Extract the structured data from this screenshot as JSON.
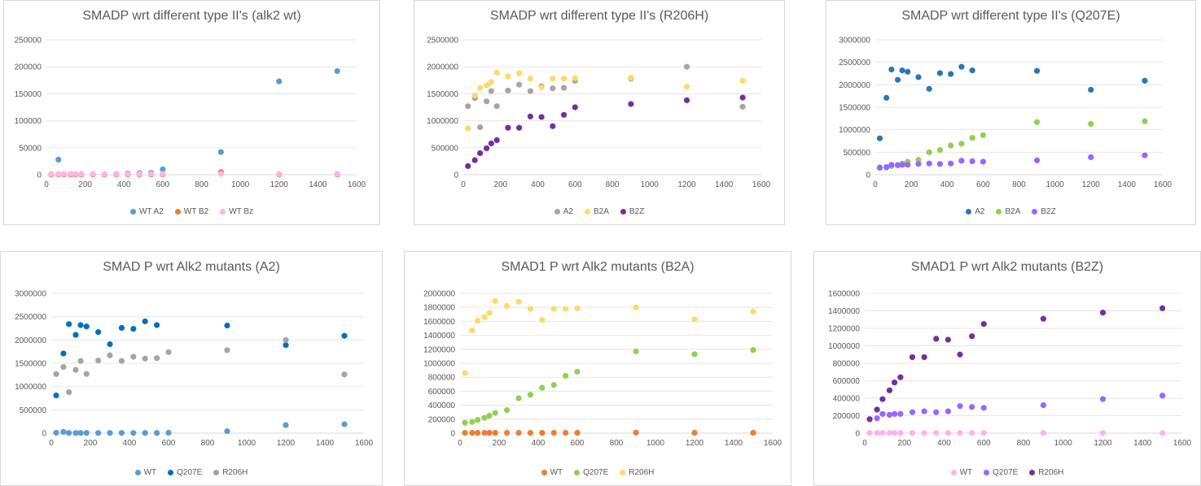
{
  "chart_data": [
    {
      "type": "scatter",
      "title": "SMADP wrt different type II's (alk2 wt)",
      "ylim": [
        0,
        250000
      ],
      "yticks": [
        0,
        50000,
        100000,
        150000,
        200000,
        250000
      ],
      "xlim": [
        0,
        1600
      ],
      "xticks": [
        0,
        200,
        400,
        600,
        800,
        1000,
        1200,
        1400,
        1600
      ],
      "grid": true,
      "legend": "bottom",
      "series": [
        {
          "name": "WT A2",
          "color": "#5b9bd5",
          "x": [
            25,
            62,
            125,
            900,
            1200,
            1500,
            420,
            480,
            540,
            600,
            360
          ],
          "y": [
            1000,
            28000,
            1000,
            42000,
            173000,
            192000,
            2500,
            3000,
            3500,
            10000,
            1500
          ]
        },
        {
          "name": "WT B2",
          "color": "#ed7d31",
          "x": [
            25,
            62,
            90,
            125,
            150,
            180,
            240,
            300,
            360,
            420,
            480,
            540,
            600,
            900,
            1200,
            1500
          ],
          "y": [
            500,
            500,
            500,
            500,
            500,
            500,
            500,
            500,
            500,
            500,
            500,
            500,
            500,
            5000,
            500,
            500
          ]
        },
        {
          "name": "WT Bz",
          "color": "#ffb3e6",
          "x": [
            25,
            62,
            90,
            125,
            150,
            180,
            240,
            300,
            360,
            420,
            480,
            540,
            600,
            900,
            1200,
            1500
          ],
          "y": [
            1500,
            1500,
            1500,
            1500,
            1500,
            1500,
            1500,
            1500,
            1500,
            1500,
            1500,
            1500,
            1500,
            1500,
            1500,
            1500
          ]
        }
      ]
    },
    {
      "type": "scatter",
      "title": "SMADP wrt different type II's  (R206H)",
      "ylim": [
        0,
        2500000
      ],
      "yticks": [
        0,
        500000,
        1000000,
        1500000,
        2000000,
        2500000
      ],
      "xlim": [
        0,
        1600
      ],
      "xticks": [
        0,
        200,
        400,
        600,
        800,
        1000,
        1200,
        1400,
        1600
      ],
      "grid": true,
      "legend": "bottom",
      "series": [
        {
          "name": "A2",
          "color": "#a5a5a5",
          "x": [
            25,
            62,
            90,
            125,
            150,
            180,
            240,
            300,
            360,
            420,
            480,
            540,
            600,
            900,
            1200,
            1500
          ],
          "y": [
            1270000,
            1420000,
            880000,
            1360000,
            1550000,
            1270000,
            1560000,
            1670000,
            1550000,
            1640000,
            1600000,
            1610000,
            1740000,
            1780000,
            2000000,
            1260000
          ]
        },
        {
          "name": "B2A",
          "color": "#ffd966",
          "x": [
            25,
            62,
            90,
            125,
            150,
            180,
            240,
            300,
            360,
            420,
            480,
            540,
            600,
            900,
            1200,
            1500
          ],
          "y": [
            860000,
            1470000,
            1610000,
            1660000,
            1720000,
            1890000,
            1820000,
            1880000,
            1780000,
            1620000,
            1780000,
            1780000,
            1790000,
            1800000,
            1630000,
            1740000
          ]
        },
        {
          "name": "B2Z",
          "color": "#7030a0",
          "x": [
            25,
            62,
            90,
            125,
            150,
            180,
            240,
            300,
            360,
            420,
            480,
            540,
            600,
            900,
            1200,
            1500
          ],
          "y": [
            160000,
            270000,
            400000,
            490000,
            580000,
            640000,
            870000,
            870000,
            1080000,
            1070000,
            900000,
            1110000,
            1250000,
            1310000,
            1380000,
            1430000
          ]
        }
      ]
    },
    {
      "type": "scatter",
      "title": "SMADP wrt different type II's  (Q207E)",
      "ylim": [
        0,
        3000000
      ],
      "yticks": [
        0,
        500000,
        1000000,
        1500000,
        2000000,
        2500000,
        3000000
      ],
      "xlim": [
        0,
        1600
      ],
      "xticks": [
        0,
        200,
        400,
        600,
        800,
        1000,
        1200,
        1400,
        1600
      ],
      "grid": true,
      "legend": "bottom",
      "series": [
        {
          "name": "A2",
          "color": "#2e75b6",
          "x": [
            25,
            62,
            90,
            125,
            150,
            180,
            240,
            300,
            360,
            420,
            480,
            540,
            900,
            1200,
            1500
          ],
          "y": [
            810000,
            1710000,
            2340000,
            2110000,
            2320000,
            2290000,
            2170000,
            1910000,
            2260000,
            2240000,
            2400000,
            2320000,
            2310000,
            1890000,
            2090000
          ]
        },
        {
          "name": "B2A",
          "color": "#92d050",
          "x": [
            25,
            62,
            90,
            125,
            150,
            180,
            240,
            300,
            360,
            420,
            480,
            540,
            600,
            900,
            1200,
            1500
          ],
          "y": [
            150000,
            160000,
            190000,
            220000,
            250000,
            290000,
            330000,
            500000,
            550000,
            650000,
            690000,
            820000,
            880000,
            1170000,
            1130000,
            1190000
          ]
        },
        {
          "name": "B2Z",
          "color": "#9966ff",
          "x": [
            25,
            62,
            90,
            125,
            150,
            180,
            240,
            300,
            360,
            420,
            480,
            540,
            600,
            900,
            1200,
            1500
          ],
          "y": [
            160000,
            170000,
            220000,
            210000,
            220000,
            220000,
            240000,
            250000,
            240000,
            250000,
            310000,
            300000,
            290000,
            320000,
            390000,
            430000
          ]
        }
      ]
    },
    {
      "type": "scatter",
      "title": "SMAD P wrt Alk2 mutants (A2)",
      "ylim": [
        0,
        3000000
      ],
      "yticks": [
        0,
        500000,
        1000000,
        1500000,
        2000000,
        2500000,
        3000000
      ],
      "xlim": [
        0,
        1600
      ],
      "xticks": [
        0,
        200,
        400,
        600,
        800,
        1000,
        1200,
        1400,
        1600
      ],
      "grid": true,
      "legend": "bottom",
      "series": [
        {
          "name": "WT",
          "color": "#5b9bd5",
          "x": [
            25,
            62,
            90,
            125,
            150,
            180,
            240,
            300,
            360,
            420,
            480,
            540,
            600,
            900,
            1200,
            1500
          ],
          "y": [
            10000,
            28000,
            5000,
            5000,
            5000,
            5000,
            5000,
            5000,
            5000,
            5000,
            5000,
            5000,
            10000,
            42000,
            173000,
            192000
          ]
        },
        {
          "name": "Q207E",
          "color": "#0070c0",
          "x": [
            25,
            62,
            90,
            125,
            150,
            180,
            240,
            300,
            360,
            420,
            480,
            540,
            900,
            1200,
            1500
          ],
          "y": [
            810000,
            1710000,
            2340000,
            2110000,
            2320000,
            2290000,
            2170000,
            1910000,
            2260000,
            2240000,
            2400000,
            2320000,
            2310000,
            1890000,
            2090000
          ]
        },
        {
          "name": "R206H",
          "color": "#a5a5a5",
          "x": [
            25,
            62,
            90,
            125,
            150,
            180,
            240,
            300,
            360,
            420,
            480,
            540,
            600,
            900,
            1200,
            1500
          ],
          "y": [
            1270000,
            1420000,
            880000,
            1360000,
            1550000,
            1270000,
            1560000,
            1670000,
            1550000,
            1640000,
            1600000,
            1610000,
            1740000,
            1780000,
            2000000,
            1260000
          ]
        }
      ]
    },
    {
      "type": "scatter",
      "title": "SMAD1 P wrt Alk2 mutants (B2A)",
      "ylim": [
        0,
        2000000
      ],
      "yticks": [
        0,
        200000,
        400000,
        600000,
        800000,
        1000000,
        1200000,
        1400000,
        1600000,
        1800000,
        2000000
      ],
      "xlim": [
        0,
        1600
      ],
      "xticks": [
        0,
        200,
        400,
        600,
        800,
        1000,
        1200,
        1400,
        1600
      ],
      "grid": true,
      "legend": "bottom",
      "series": [
        {
          "name": "WT",
          "color": "#ed7d31",
          "x": [
            25,
            62,
            90,
            125,
            150,
            180,
            240,
            300,
            360,
            420,
            480,
            540,
            600,
            900,
            1200,
            1500
          ],
          "y": [
            5000,
            5000,
            5000,
            5000,
            5000,
            5000,
            5000,
            5000,
            5000,
            5000,
            5000,
            5000,
            5000,
            8000,
            5000,
            5000
          ]
        },
        {
          "name": "Q207E",
          "color": "#92d050",
          "x": [
            25,
            62,
            90,
            125,
            150,
            180,
            240,
            300,
            360,
            420,
            480,
            540,
            600,
            900,
            1200,
            1500
          ],
          "y": [
            150000,
            160000,
            190000,
            220000,
            250000,
            290000,
            330000,
            500000,
            550000,
            650000,
            690000,
            820000,
            880000,
            1170000,
            1130000,
            1190000
          ]
        },
        {
          "name": "R206H",
          "color": "#ffd966",
          "x": [
            25,
            62,
            90,
            125,
            150,
            180,
            240,
            300,
            360,
            420,
            480,
            540,
            600,
            900,
            1200,
            1500
          ],
          "y": [
            860000,
            1470000,
            1610000,
            1660000,
            1720000,
            1890000,
            1820000,
            1880000,
            1780000,
            1620000,
            1780000,
            1780000,
            1790000,
            1800000,
            1630000,
            1740000
          ]
        }
      ]
    },
    {
      "type": "scatter",
      "title": "SMAD1 P wrt Alk2 mutants (B2Z)",
      "ylim": [
        0,
        1600000
      ],
      "yticks": [
        0,
        200000,
        400000,
        600000,
        800000,
        1000000,
        1200000,
        1400000,
        1600000
      ],
      "xlim": [
        0,
        1600
      ],
      "xticks": [
        0,
        200,
        400,
        600,
        800,
        1000,
        1200,
        1400,
        1600
      ],
      "grid": true,
      "legend": "bottom",
      "series": [
        {
          "name": "WT",
          "color": "#ffb3e6",
          "x": [
            25,
            62,
            90,
            125,
            150,
            180,
            240,
            300,
            360,
            420,
            480,
            540,
            600,
            900,
            1200,
            1500
          ],
          "y": [
            3000,
            3000,
            3000,
            3000,
            3000,
            3000,
            3000,
            3000,
            3000,
            3000,
            3000,
            3000,
            3000,
            3000,
            3000,
            3000
          ]
        },
        {
          "name": "Q207E",
          "color": "#9966ff",
          "x": [
            25,
            62,
            90,
            125,
            150,
            180,
            240,
            300,
            360,
            420,
            480,
            540,
            600,
            900,
            1200,
            1500
          ],
          "y": [
            160000,
            170000,
            220000,
            210000,
            220000,
            220000,
            240000,
            250000,
            240000,
            250000,
            310000,
            300000,
            290000,
            320000,
            390000,
            430000
          ]
        },
        {
          "name": "R206H",
          "color": "#7030a0",
          "x": [
            25,
            62,
            90,
            125,
            150,
            180,
            240,
            300,
            360,
            420,
            480,
            540,
            600,
            900,
            1200,
            1500
          ],
          "y": [
            160000,
            270000,
            390000,
            490000,
            580000,
            640000,
            870000,
            870000,
            1080000,
            1070000,
            900000,
            1110000,
            1250000,
            1310000,
            1380000,
            1430000
          ]
        }
      ]
    }
  ]
}
